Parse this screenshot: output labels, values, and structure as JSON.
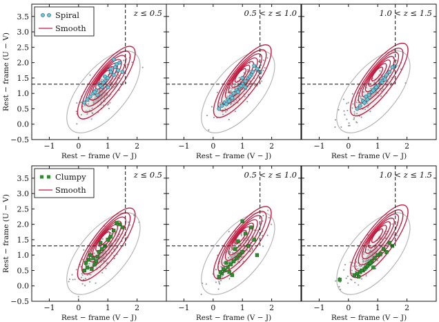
{
  "chart_data": {
    "type": "scatter",
    "title": "",
    "xlabel": "Rest − frame (V − J)",
    "ylabel": "Rest − frame (U − V)",
    "xlim": [
      -1.6,
      3.0
    ],
    "ylim": [
      -0.5,
      3.9
    ],
    "xticks": [
      -1,
      0,
      1,
      2
    ],
    "yticks": [
      -0.5,
      0.0,
      0.5,
      1.0,
      1.5,
      2.0,
      2.5,
      3.0,
      3.5
    ],
    "ytick_labels": [
      "−0.5",
      "0.0",
      "0.5",
      "1.0",
      "1.5",
      "2.0",
      "2.5",
      "3.0",
      "3.5"
    ],
    "xtick_labels": [
      "−1",
      "0",
      "1",
      "2"
    ],
    "quiescent_box": {
      "vj_max": 1.6,
      "uv_min": 1.3
    },
    "colors": {
      "smooth": "#c0183e",
      "spiral": "#6fc3d6",
      "clumpy": "#2e8b2e",
      "background": "#9a9a9a"
    },
    "rows": [
      {
        "name": "Spiral",
        "legend": [
          "Spiral",
          "Smooth"
        ],
        "panels": [
          {
            "zlabel": "z ≤ 0.5",
            "points": [
              [
                0.9,
                1.55
              ],
              [
                1.1,
                1.8
              ],
              [
                0.7,
                1.3
              ],
              [
                1.2,
                1.6
              ],
              [
                0.5,
                1.0
              ],
              [
                0.8,
                1.2
              ],
              [
                1.3,
                1.95
              ],
              [
                0.6,
                1.1
              ],
              [
                1.0,
                1.5
              ],
              [
                0.4,
                0.9
              ],
              [
                1.4,
                2.0
              ],
              [
                0.9,
                1.4
              ],
              [
                0.3,
                0.8
              ],
              [
                1.1,
                1.7
              ],
              [
                0.75,
                1.25
              ],
              [
                1.25,
                1.85
              ],
              [
                0.55,
                1.05
              ],
              [
                1.5,
                1.7
              ],
              [
                0.85,
                1.35
              ],
              [
                1.2,
                2.1
              ],
              [
                0.2,
                0.7
              ],
              [
                1.0,
                1.2
              ],
              [
                0.65,
                0.95
              ],
              [
                1.35,
                1.75
              ]
            ]
          },
          {
            "zlabel": "0.5 < z ≤ 1.0",
            "points": [
              [
                0.6,
                0.9
              ],
              [
                0.9,
                1.2
              ],
              [
                1.1,
                1.4
              ],
              [
                0.4,
                0.7
              ],
              [
                1.3,
                1.6
              ],
              [
                0.8,
                1.1
              ],
              [
                1.5,
                1.8
              ],
              [
                0.5,
                0.8
              ],
              [
                1.2,
                1.5
              ],
              [
                0.7,
                1.0
              ],
              [
                1.0,
                1.3
              ],
              [
                0.3,
                0.6
              ],
              [
                1.4,
                1.9
              ],
              [
                0.95,
                1.25
              ],
              [
                0.65,
                0.85
              ],
              [
                1.25,
                1.55
              ],
              [
                0.2,
                0.5
              ],
              [
                1.1,
                1.2
              ],
              [
                0.85,
                1.05
              ],
              [
                1.35,
                1.7
              ],
              [
                0.55,
                0.75
              ],
              [
                1.0,
                1.5
              ],
              [
                0.45,
                0.65
              ],
              [
                1.6,
                1.7
              ]
            ]
          },
          {
            "zlabel": "1.0 < z ≤ 1.5",
            "points": [
              [
                0.6,
                0.9
              ],
              [
                0.9,
                1.15
              ],
              [
                1.2,
                1.5
              ],
              [
                0.5,
                0.75
              ],
              [
                1.4,
                1.7
              ],
              [
                0.8,
                1.05
              ],
              [
                1.0,
                1.25
              ],
              [
                0.7,
                0.95
              ],
              [
                1.3,
                1.6
              ],
              [
                0.4,
                0.6
              ],
              [
                1.1,
                1.4
              ],
              [
                0.65,
                0.8
              ],
              [
                1.5,
                1.85
              ],
              [
                0.95,
                1.2
              ],
              [
                0.55,
                0.7
              ],
              [
                1.25,
                1.45
              ],
              [
                0.3,
                0.5
              ],
              [
                1.6,
                1.9
              ],
              [
                0.85,
                1.1
              ],
              [
                1.15,
                1.35
              ]
            ]
          }
        ]
      },
      {
        "name": "Clumpy",
        "legend": [
          "Clumpy",
          "Smooth"
        ],
        "panels": [
          {
            "zlabel": "z ≤ 0.5",
            "points": [
              [
                0.5,
                0.9
              ],
              [
                0.8,
                1.2
              ],
              [
                0.3,
                0.6
              ],
              [
                1.0,
                1.5
              ],
              [
                0.6,
                0.8
              ],
              [
                0.4,
                1.0
              ],
              [
                1.2,
                1.8
              ],
              [
                0.7,
                1.1
              ],
              [
                0.2,
                0.5
              ],
              [
                0.9,
                1.3
              ],
              [
                1.4,
                2.0
              ],
              [
                0.55,
                0.7
              ],
              [
                0.35,
                0.85
              ],
              [
                1.1,
                1.6
              ],
              [
                0.65,
                0.95
              ],
              [
                0.45,
                0.55
              ],
              [
                1.3,
                2.05
              ],
              [
                0.75,
                1.4
              ],
              [
                0.25,
                0.75
              ],
              [
                1.5,
                1.9
              ]
            ]
          },
          {
            "zlabel": "0.5 < z ≤ 1.0",
            "points": [
              [
                0.5,
                0.6
              ],
              [
                0.8,
                0.9
              ],
              [
                0.3,
                0.4
              ],
              [
                1.0,
                1.1
              ],
              [
                0.6,
                0.7
              ],
              [
                0.4,
                0.5
              ],
              [
                1.2,
                1.3
              ],
              [
                0.7,
                0.8
              ],
              [
                0.2,
                0.3
              ],
              [
                0.9,
                1.0
              ],
              [
                1.4,
                1.5
              ],
              [
                0.55,
                0.45
              ],
              [
                0.35,
                0.55
              ],
              [
                1.1,
                1.7
              ],
              [
                0.65,
                0.35
              ],
              [
                0.45,
                0.75
              ],
              [
                1.3,
                1.9
              ],
              [
                0.75,
                1.2
              ],
              [
                0.25,
                0.45
              ],
              [
                1.5,
                1.0
              ],
              [
                0.85,
                1.45
              ],
              [
                1.0,
                2.1
              ]
            ]
          },
          {
            "zlabel": "1.0 < z ≤ 1.5",
            "points": [
              [
                0.5,
                0.5
              ],
              [
                0.8,
                0.8
              ],
              [
                0.3,
                0.4
              ],
              [
                1.0,
                1.0
              ],
              [
                0.6,
                0.6
              ],
              [
                0.4,
                0.45
              ],
              [
                1.2,
                1.2
              ],
              [
                0.7,
                0.7
              ],
              [
                0.2,
                0.35
              ],
              [
                0.9,
                0.9
              ],
              [
                1.4,
                1.4
              ],
              [
                0.55,
                0.55
              ],
              [
                0.35,
                0.3
              ],
              [
                1.1,
                1.05
              ],
              [
                0.65,
                0.65
              ],
              [
                0.45,
                0.5
              ],
              [
                1.3,
                1.1
              ],
              [
                0.75,
                0.75
              ],
              [
                -0.3,
                0.2
              ],
              [
                1.5,
                1.3
              ],
              [
                0.85,
                0.6
              ]
            ]
          }
        ]
      }
    ]
  }
}
